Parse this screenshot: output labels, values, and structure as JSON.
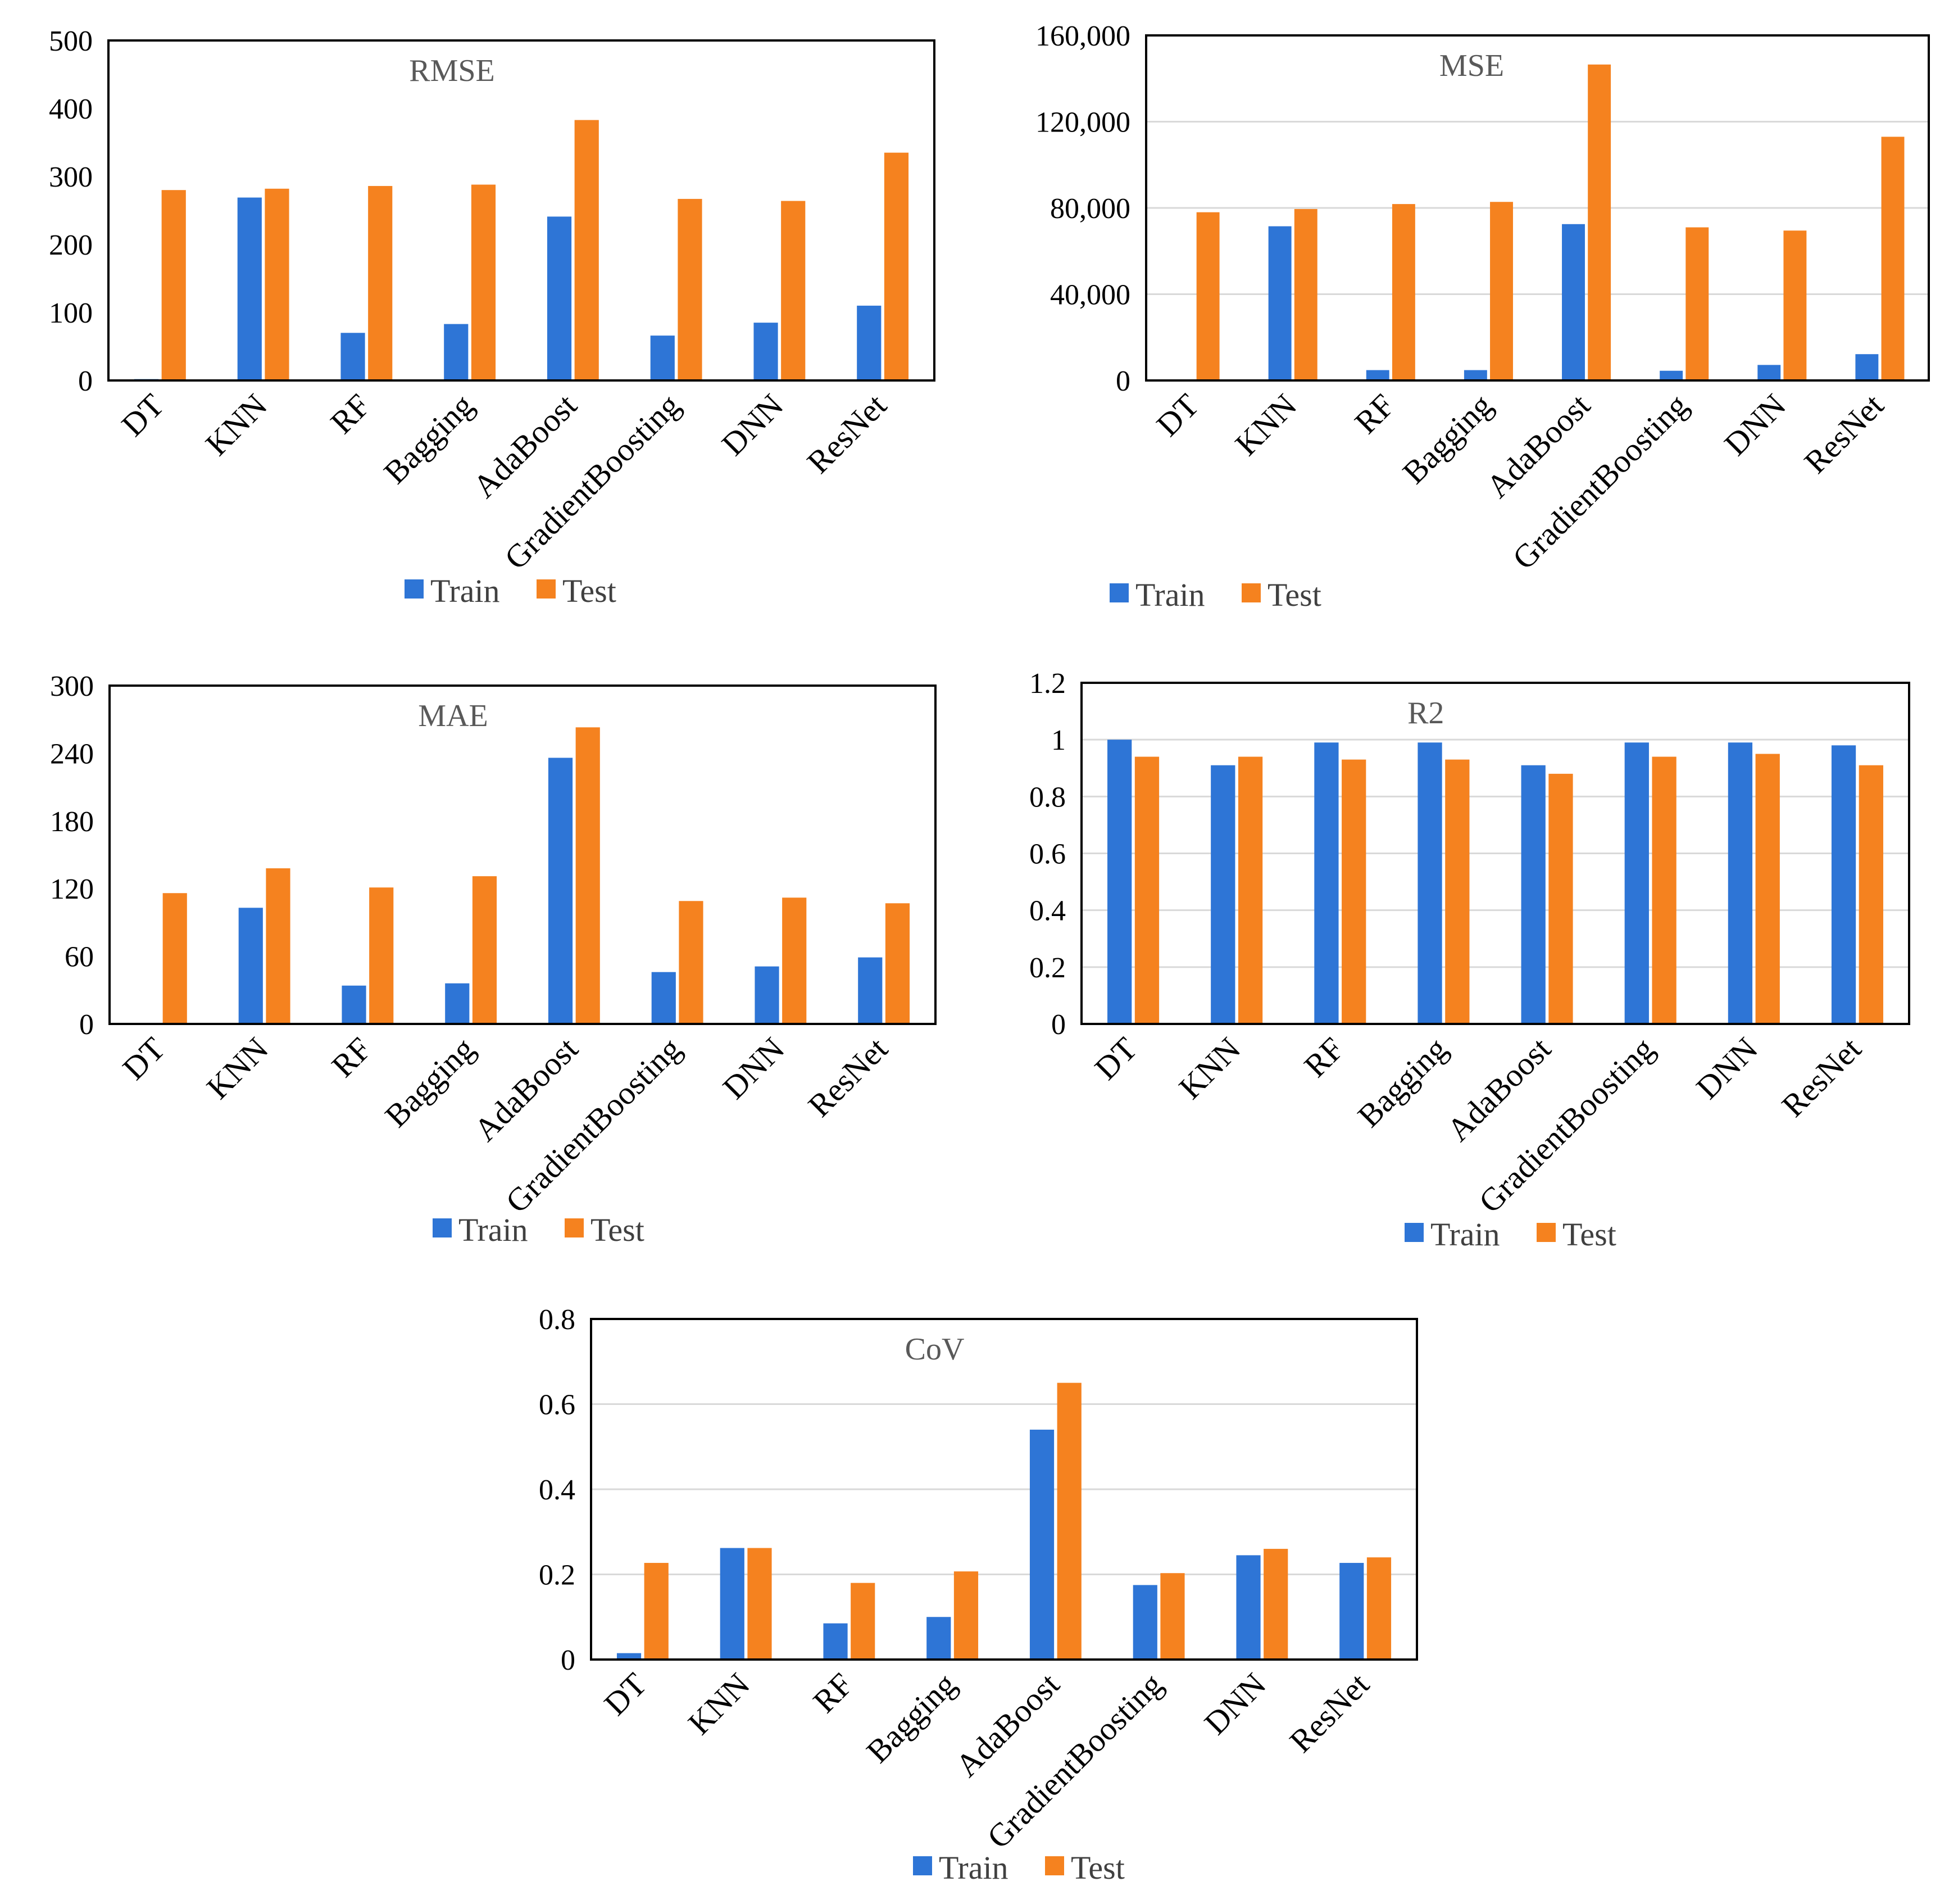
{
  "chart_data": [
    {
      "type": "bar",
      "title": "RMSE",
      "categories": [
        "DT",
        "KNN",
        "RF",
        "Bagging",
        "AdaBoost",
        "GradientBoosting",
        "DNN",
        "ResNet"
      ],
      "series": [
        {
          "name": "Train",
          "values": [
            2,
            269,
            70,
            83,
            241,
            66,
            85,
            110
          ]
        },
        {
          "name": "Test",
          "values": [
            280,
            282,
            286,
            288,
            383,
            267,
            264,
            335
          ]
        }
      ],
      "ylim": [
        0,
        500
      ],
      "yticks": [
        "0",
        "100",
        "200",
        "300",
        "400",
        "500"
      ],
      "grid": false,
      "legend": "bottom-right"
    },
    {
      "type": "bar",
      "title": "MSE",
      "categories": [
        "DT",
        "KNN",
        "RF",
        "Bagging",
        "AdaBoost",
        "GradientBoosting",
        "DNN",
        "ResNet"
      ],
      "series": [
        {
          "name": "Train",
          "values": [
            500,
            71500,
            4800,
            4800,
            72500,
            4500,
            7200,
            12200
          ]
        },
        {
          "name": "Test",
          "values": [
            78000,
            79500,
            81800,
            82800,
            146500,
            71000,
            69500,
            113000
          ]
        }
      ],
      "ylim": [
        0,
        160000
      ],
      "yticks": [
        "0",
        "40,000",
        "80,000",
        "120,000",
        "160,000"
      ],
      "grid": true,
      "legend": "bottom-right"
    },
    {
      "type": "bar",
      "title": "MAE",
      "categories": [
        "DT",
        "KNN",
        "RF",
        "Bagging",
        "AdaBoost",
        "GradientBoosting",
        "DNN",
        "ResNet"
      ],
      "series": [
        {
          "name": "Train",
          "values": [
            1,
            103,
            34,
            36,
            236,
            46,
            51,
            59
          ]
        },
        {
          "name": "Test",
          "values": [
            116,
            138,
            121,
            131,
            263,
            109,
            112,
            107
          ]
        }
      ],
      "ylim": [
        0,
        300
      ],
      "yticks": [
        "0",
        "60",
        "120",
        "180",
        "240",
        "300"
      ],
      "grid": false,
      "legend": "bottom-right"
    },
    {
      "type": "bar",
      "title": "R2",
      "categories": [
        "DT",
        "KNN",
        "RF",
        "Bagging",
        "AdaBoost",
        "GradientBoosting",
        "DNN",
        "ResNet"
      ],
      "series": [
        {
          "name": "Train",
          "values": [
            1.0,
            0.91,
            0.99,
            0.99,
            0.91,
            0.99,
            0.99,
            0.98
          ]
        },
        {
          "name": "Test",
          "values": [
            0.94,
            0.94,
            0.93,
            0.93,
            0.88,
            0.94,
            0.95,
            0.91
          ]
        }
      ],
      "ylim": [
        0,
        1.2
      ],
      "yticks": [
        "0",
        "0.2",
        "0.4",
        "0.6",
        "0.8",
        "1",
        "1.2"
      ],
      "grid": true,
      "legend": "bottom-right"
    },
    {
      "type": "bar",
      "title": "CoV",
      "categories": [
        "DT",
        "KNN",
        "RF",
        "Bagging",
        "AdaBoost",
        "GradientBoosting",
        "DNN",
        "ResNet"
      ],
      "series": [
        {
          "name": "Train",
          "values": [
            0.015,
            0.262,
            0.085,
            0.1,
            0.54,
            0.175,
            0.245,
            0.227
          ]
        },
        {
          "name": "Test",
          "values": [
            0.227,
            0.262,
            0.18,
            0.207,
            0.65,
            0.203,
            0.26,
            0.24
          ]
        }
      ],
      "ylim": [
        0,
        0.8
      ],
      "yticks": [
        "0",
        "0.2",
        "0.4",
        "0.6",
        "0.8"
      ],
      "grid": true,
      "legend": "bottom-right"
    }
  ],
  "colors": {
    "Train": "#2e75d6",
    "Test": "#f5821f"
  }
}
